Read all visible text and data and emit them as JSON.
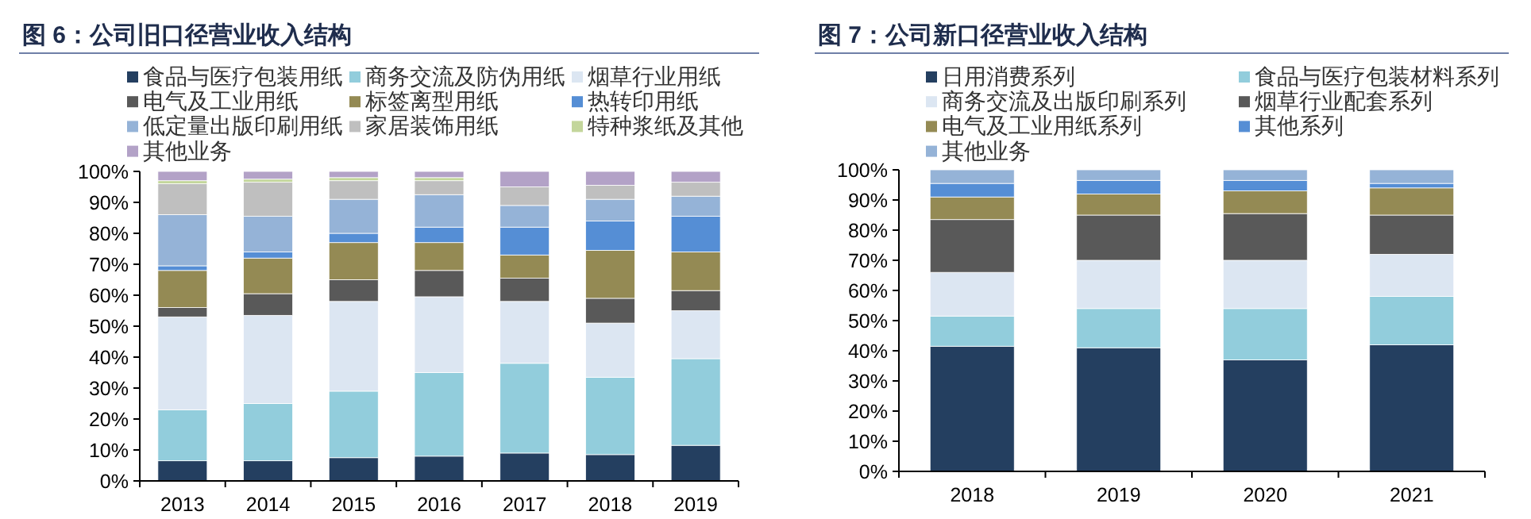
{
  "chart_data": [
    {
      "type": "bar",
      "title": "图 6：公司旧口径营业收入结构",
      "stacked": true,
      "legend": "top",
      "categories": [
        "2013",
        "2014",
        "2015",
        "2016",
        "2017",
        "2018",
        "2019"
      ],
      "ylim": [
        0,
        100
      ],
      "yticks": [
        {
          "value": 0,
          "label": "0%"
        },
        {
          "value": 10,
          "label": "10%"
        },
        {
          "value": 20,
          "label": "20%"
        },
        {
          "value": 30,
          "label": "30%"
        },
        {
          "value": 40,
          "label": "40%"
        },
        {
          "value": 50,
          "label": "50%"
        },
        {
          "value": 60,
          "label": "60%"
        },
        {
          "value": 70,
          "label": "70%"
        },
        {
          "value": 80,
          "label": "80%"
        },
        {
          "value": 90,
          "label": "90%"
        },
        {
          "value": 100,
          "label": "100%"
        }
      ],
      "series": [
        {
          "name": "食品与医疗包装用纸",
          "color": "#243f60",
          "values": [
            6.5,
            6.5,
            7.5,
            8,
            9,
            8.5,
            11.5
          ]
        },
        {
          "name": "商务交流及防伪用纸",
          "color": "#92cddc",
          "values": [
            16.5,
            18.5,
            21.5,
            27,
            29,
            25,
            28
          ]
        },
        {
          "name": "烟草行业用纸",
          "color": "#dce6f2",
          "values": [
            30,
            28.5,
            29,
            24.5,
            20,
            17.5,
            15.5
          ]
        },
        {
          "name": "电气及工业用纸",
          "color": "#595959",
          "values": [
            3,
            7,
            7,
            8.5,
            7.5,
            8,
            6.5
          ]
        },
        {
          "name": "标签离型用纸",
          "color": "#948a54",
          "values": [
            12,
            11.5,
            12,
            9,
            7.5,
            15.5,
            12.5
          ]
        },
        {
          "name": "热转印用纸",
          "color": "#558ed5",
          "values": [
            1.5,
            2,
            3,
            5,
            9,
            9.5,
            11.5
          ]
        },
        {
          "name": "低定量出版印刷用纸",
          "color": "#95b3d7",
          "values": [
            16.5,
            11.5,
            11,
            10.5,
            7,
            7,
            6.5
          ]
        },
        {
          "name": "家居装饰用纸",
          "color": "#bfbfbf",
          "values": [
            10,
            11,
            6,
            4.5,
            6,
            4.5,
            4.5
          ]
        },
        {
          "name": "特种浆纸及其他",
          "color": "#c3d69b",
          "values": [
            1,
            1,
            1,
            1,
            0,
            0,
            0
          ]
        },
        {
          "name": "其他业务",
          "color": "#b3a2c7",
          "values": [
            3,
            2.5,
            2,
            2,
            5,
            4.5,
            3.5
          ]
        }
      ]
    },
    {
      "type": "bar",
      "title": "图 7：公司新口径营业收入结构",
      "stacked": true,
      "legend": "top",
      "categories": [
        "2018",
        "2019",
        "2020",
        "2021"
      ],
      "ylim": [
        0,
        100
      ],
      "yticks": [
        {
          "value": 0,
          "label": "0%"
        },
        {
          "value": 10,
          "label": "10%"
        },
        {
          "value": 20,
          "label": "20%"
        },
        {
          "value": 30,
          "label": "30%"
        },
        {
          "value": 40,
          "label": "40%"
        },
        {
          "value": 50,
          "label": "50%"
        },
        {
          "value": 60,
          "label": "60%"
        },
        {
          "value": 70,
          "label": "70%"
        },
        {
          "value": 80,
          "label": "80%"
        },
        {
          "value": 90,
          "label": "90%"
        },
        {
          "value": 100,
          "label": "100%"
        }
      ],
      "series": [
        {
          "name": "日用消费系列",
          "color": "#243f60",
          "values": [
            41.5,
            41,
            37,
            42
          ]
        },
        {
          "name": "食品与医疗包装材料系列",
          "color": "#92cddc",
          "values": [
            10,
            13,
            17,
            16
          ]
        },
        {
          "name": "商务交流及出版印刷系列",
          "color": "#dce6f2",
          "values": [
            14.5,
            16,
            16,
            14
          ]
        },
        {
          "name": "烟草行业配套系列",
          "color": "#595959",
          "values": [
            17.5,
            15,
            15.5,
            13
          ]
        },
        {
          "name": "电气及工业用纸系列",
          "color": "#948a54",
          "values": [
            7.5,
            7,
            7.5,
            9
          ]
        },
        {
          "name": "其他系列",
          "color": "#558ed5",
          "values": [
            4.5,
            4.5,
            3.5,
            1.5
          ]
        },
        {
          "name": "其他业务",
          "color": "#95b3d7",
          "values": [
            4.5,
            3.5,
            3.5,
            4.5
          ]
        }
      ]
    }
  ]
}
